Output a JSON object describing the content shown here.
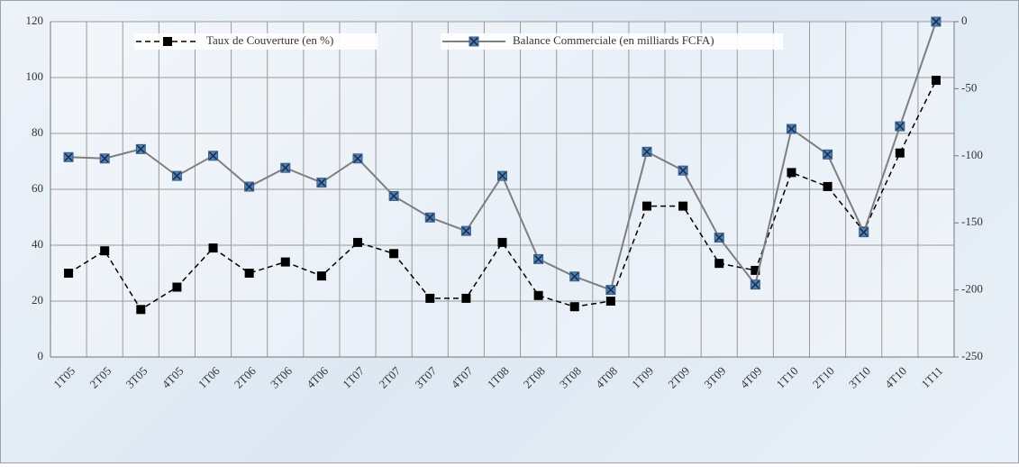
{
  "chart_data": {
    "type": "line",
    "categories": [
      "1T05",
      "2T05",
      "3T05",
      "4T05",
      "1T06",
      "2T06",
      "3T06",
      "4T06",
      "1T07",
      "2T07",
      "3T07",
      "4T07",
      "1T08",
      "2T08",
      "3T08",
      "4T08",
      "1T09",
      "2T09",
      "3T09",
      "4T09",
      "1T10",
      "2T10",
      "3T10",
      "4T10",
      "1T11"
    ],
    "series": [
      {
        "name": "Taux de Couverture (en %)",
        "color": "#000000",
        "axis": "y",
        "values": [
          30,
          38,
          17,
          25,
          39,
          30,
          34,
          29,
          41,
          37,
          21,
          21,
          41,
          22,
          18,
          20,
          54,
          54,
          33.5,
          31,
          66,
          61,
          45,
          73,
          99
        ]
      },
      {
        "name": "Balance Commerciale (en milliards FCFA)",
        "color": "#7f7f7f",
        "axis": "y2",
        "values": [
          -101,
          -102,
          -95,
          -115,
          -100,
          -123,
          -109,
          -120,
          -102,
          -130,
          -146,
          -156,
          -115,
          -177,
          -190,
          -200,
          -97,
          -111,
          -161,
          -196,
          -80,
          -99,
          -157,
          -78,
          0
        ]
      }
    ],
    "ylim": [
      0,
      120
    ],
    "yticks": [
      0,
      20,
      40,
      60,
      80,
      100,
      120
    ],
    "y2lim": [
      -250,
      0
    ],
    "y2ticks": [
      -250,
      -200,
      -150,
      -100,
      -50,
      0
    ],
    "grid": true,
    "legend": "top"
  }
}
